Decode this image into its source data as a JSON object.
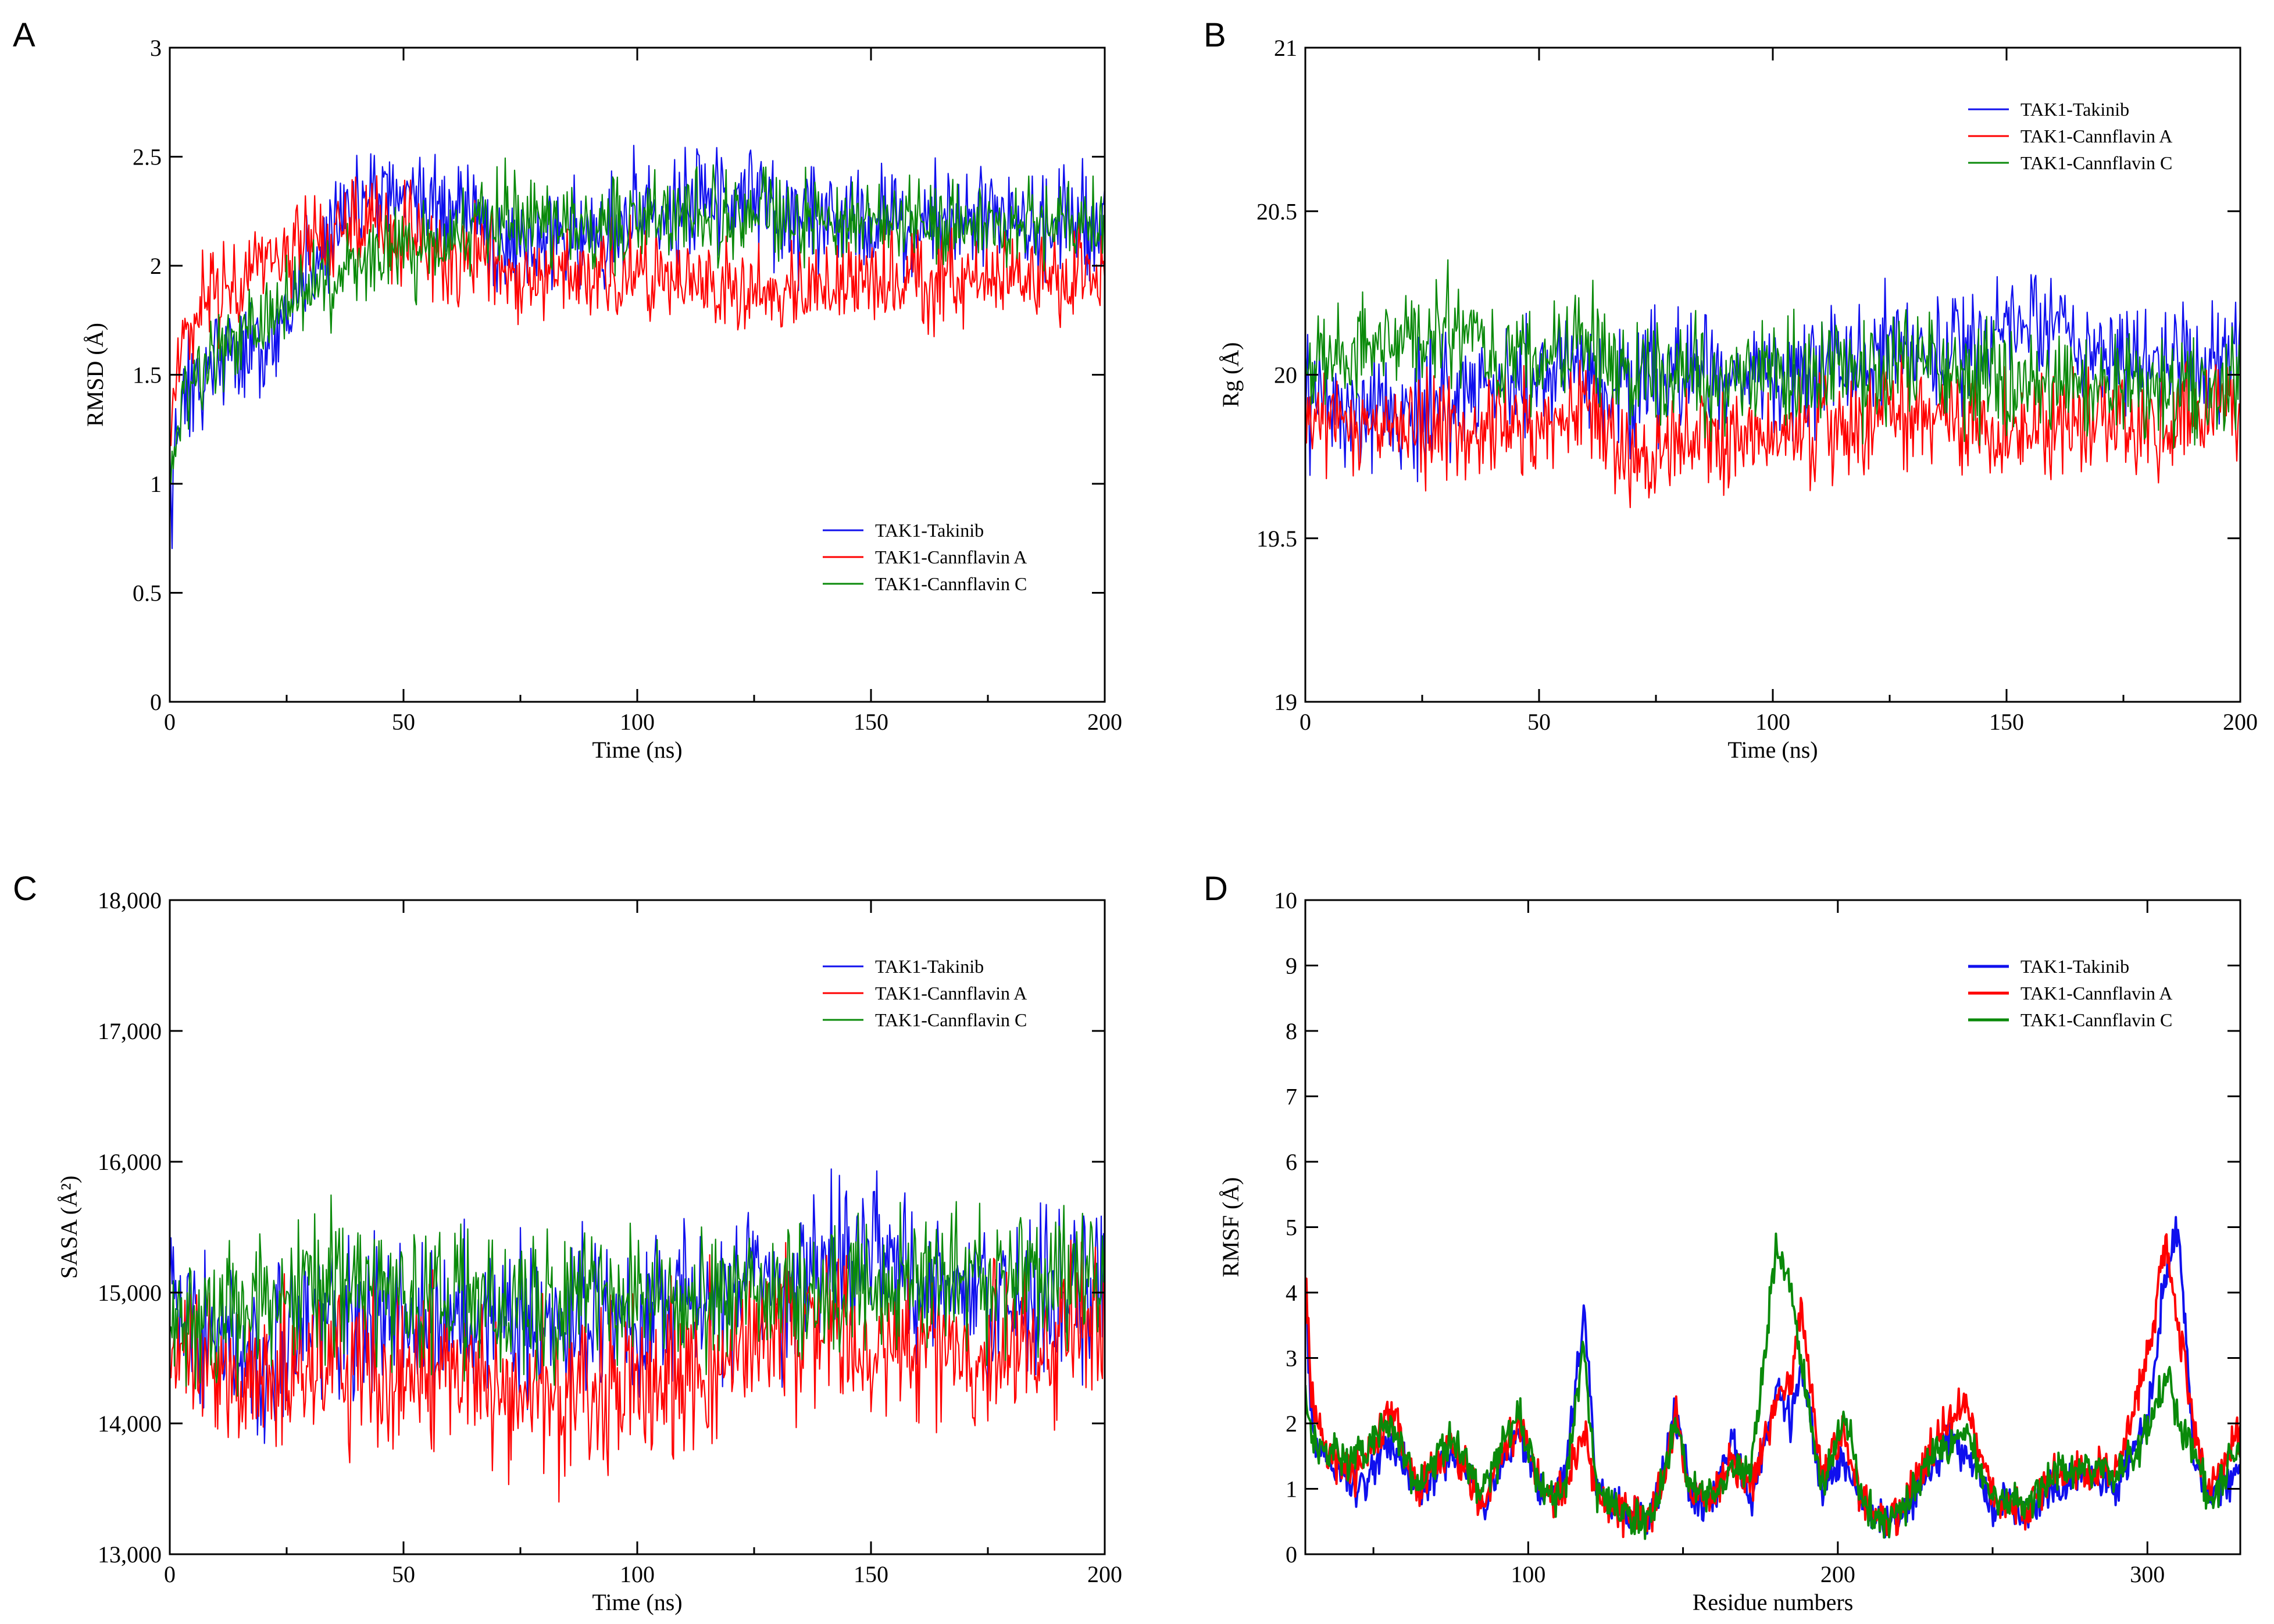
{
  "colors": {
    "takinib": "#1010ee",
    "cannflavin_a": "#ff0000",
    "cannflavin_c": "#0a8a0a"
  },
  "chart_data": [
    {
      "panel": "A",
      "type": "line",
      "title": "",
      "xlabel": "Time (ns)",
      "ylabel": "RMSD (Å)",
      "xlim": [
        0,
        200
      ],
      "ylim": [
        0,
        3
      ],
      "xticks": [
        0,
        50,
        100,
        150,
        200
      ],
      "xtick_labels": [
        "0",
        "50",
        "100",
        "150",
        "200"
      ],
      "yticks": [
        0,
        0.5,
        1,
        1.5,
        2,
        2.5,
        3
      ],
      "ytick_labels": [
        "0",
        "0.5",
        "1",
        "1.5",
        "2",
        "2.5",
        "3"
      ],
      "legend_position": "bottom-right",
      "series": [
        {
          "name": "TAK1-Takinib",
          "x": [
            0,
            2,
            10,
            20,
            30,
            40,
            50,
            60,
            70,
            80,
            100,
            120,
            140,
            160,
            180,
            200
          ],
          "values": [
            0.9,
            1.3,
            1.6,
            1.6,
            2.0,
            2.3,
            2.35,
            2.3,
            2.1,
            2.1,
            2.2,
            2.3,
            2.2,
            2.2,
            2.2,
            2.2
          ],
          "noise": 0.12
        },
        {
          "name": "TAK1-Cannflavin A",
          "x": [
            0,
            2,
            10,
            20,
            30,
            40,
            50,
            60,
            70,
            80,
            100,
            120,
            140,
            160,
            180,
            200
          ],
          "values": [
            1.2,
            1.6,
            1.9,
            2.0,
            2.1,
            2.2,
            2.15,
            2.05,
            2.0,
            1.95,
            1.95,
            1.9,
            1.9,
            1.95,
            1.95,
            1.95
          ],
          "noise": 0.11
        },
        {
          "name": "TAK1-Cannflavin C",
          "x": [
            0,
            2,
            10,
            20,
            30,
            40,
            50,
            60,
            70,
            80,
            100,
            120,
            140,
            160,
            180,
            200
          ],
          "values": [
            1.0,
            1.3,
            1.6,
            1.8,
            1.9,
            2.0,
            2.05,
            2.1,
            2.25,
            2.2,
            2.2,
            2.25,
            2.2,
            2.2,
            2.2,
            2.2
          ],
          "noise": 0.1
        }
      ]
    },
    {
      "panel": "B",
      "type": "line",
      "title": "",
      "xlabel": "Time (ns)",
      "ylabel": "Rg (Å)",
      "xlim": [
        0,
        200
      ],
      "ylim": [
        19,
        21
      ],
      "xticks": [
        0,
        50,
        100,
        150,
        200
      ],
      "xtick_labels": [
        "0",
        "50",
        "100",
        "150",
        "200"
      ],
      "yticks": [
        19,
        19.5,
        20,
        20.5,
        21
      ],
      "ytick_labels": [
        "19",
        "19.5",
        "20",
        "20.5",
        "21"
      ],
      "legend_position": "top-right",
      "series": [
        {
          "name": "TAK1-Takinib",
          "x": [
            0,
            10,
            20,
            30,
            40,
            50,
            60,
            70,
            80,
            100,
            120,
            130,
            140,
            150,
            160,
            180,
            200
          ],
          "values": [
            19.95,
            19.85,
            19.85,
            19.95,
            19.95,
            20.0,
            20.0,
            19.95,
            20.0,
            20.0,
            20.05,
            20.1,
            20.05,
            20.15,
            20.1,
            20.05,
            20.05
          ],
          "noise": 0.09
        },
        {
          "name": "TAK1-Cannflavin A",
          "x": [
            0,
            10,
            20,
            30,
            40,
            50,
            60,
            70,
            80,
            100,
            120,
            130,
            140,
            150,
            160,
            180,
            200
          ],
          "values": [
            19.9,
            19.85,
            19.85,
            19.8,
            19.85,
            19.85,
            19.9,
            19.75,
            19.8,
            19.8,
            19.85,
            19.9,
            19.85,
            19.85,
            19.85,
            19.85,
            19.9
          ],
          "noise": 0.08
        },
        {
          "name": "TAK1-Cannflavin C",
          "x": [
            0,
            10,
            20,
            30,
            40,
            50,
            60,
            70,
            80,
            100,
            120,
            130,
            140,
            150,
            160,
            180,
            200
          ],
          "values": [
            20.05,
            20.05,
            20.1,
            20.15,
            20.05,
            20.05,
            20.1,
            20.0,
            20.0,
            20.0,
            20.0,
            20.05,
            20.0,
            20.0,
            20.0,
            19.95,
            19.95
          ],
          "noise": 0.08
        }
      ]
    },
    {
      "panel": "C",
      "type": "line",
      "title": "",
      "xlabel": "Time (ns)",
      "ylabel": "SASA (Å²)",
      "xlim": [
        0,
        200
      ],
      "ylim": [
        13000,
        18000
      ],
      "xticks": [
        0,
        50,
        100,
        150,
        200
      ],
      "xtick_labels": [
        "0",
        "50",
        "100",
        "150",
        "200"
      ],
      "yticks": [
        13000,
        14000,
        15000,
        16000,
        17000,
        18000
      ],
      "ytick_labels": [
        "13,000",
        "14,000",
        "15,000",
        "16,000",
        "17,000",
        "18,000"
      ],
      "legend_position": "top-right",
      "series": [
        {
          "name": "TAK1-Takinib",
          "x": [
            0,
            10,
            20,
            30,
            50,
            70,
            90,
            110,
            120,
            125,
            130,
            150,
            160,
            180,
            200
          ],
          "values": [
            14900,
            14600,
            14500,
            14700,
            14800,
            14800,
            14800,
            14900,
            15000,
            15300,
            15000,
            15400,
            15100,
            15000,
            15000
          ],
          "noise": 280
        },
        {
          "name": "TAK1-Cannflavin A",
          "x": [
            0,
            10,
            20,
            30,
            50,
            70,
            90,
            110,
            120,
            130,
            150,
            160,
            180,
            200
          ],
          "values": [
            14500,
            14300,
            14300,
            14400,
            14500,
            14200,
            14200,
            14300,
            14600,
            14700,
            14500,
            14500,
            14600,
            14800
          ],
          "noise": 300
        },
        {
          "name": "TAK1-Cannflavin C",
          "x": [
            0,
            10,
            20,
            30,
            50,
            70,
            90,
            110,
            120,
            130,
            150,
            160,
            180,
            200
          ],
          "values": [
            14800,
            14900,
            14900,
            15100,
            15000,
            14900,
            15000,
            15000,
            15000,
            15000,
            15000,
            15100,
            15100,
            15100
          ],
          "noise": 250
        }
      ]
    },
    {
      "panel": "D",
      "type": "line",
      "title": "",
      "xlabel": "Residue numbers",
      "ylabel": "RMSF (Å)",
      "xlim": [
        28,
        330
      ],
      "ylim": [
        0,
        10
      ],
      "xticks": [
        100,
        200,
        300
      ],
      "xtick_labels": [
        "100",
        "200",
        "300"
      ],
      "yticks": [
        0,
        1,
        2,
        3,
        4,
        5,
        6,
        7,
        8,
        9,
        10
      ],
      "ytick_labels": [
        "0",
        "1",
        "2",
        "3",
        "4",
        "5",
        "6",
        "7",
        "8",
        "9",
        "10"
      ],
      "legend_position": "top-right",
      "series": [
        {
          "name": "TAK1-Takinib",
          "x": [
            28,
            30,
            35,
            45,
            55,
            65,
            75,
            85,
            97,
            105,
            112,
            118,
            122,
            130,
            140,
            148,
            152,
            160,
            166,
            172,
            180,
            185,
            188,
            195,
            202,
            207,
            212,
            220,
            228,
            235,
            242,
            250,
            260,
            270,
            280,
            290,
            300,
            306,
            310,
            315,
            320,
            330
          ],
          "values": [
            4.0,
            2.0,
            1.4,
            1.0,
            1.8,
            0.9,
            1.6,
            0.8,
            1.9,
            0.8,
            1.2,
            3.8,
            1.0,
            0.6,
            0.6,
            2.2,
            0.9,
            0.8,
            1.8,
            0.7,
            2.6,
            2.0,
            3.0,
            1.0,
            1.4,
            0.8,
            0.5,
            0.5,
            1.2,
            1.8,
            1.5,
            0.8,
            0.6,
            1.0,
            1.2,
            1.0,
            2.0,
            4.3,
            5.0,
            1.5,
            0.8,
            1.3
          ],
          "noise": 0.15
        },
        {
          "name": "TAK1-Cannflavin A",
          "x": [
            28,
            30,
            35,
            45,
            55,
            65,
            75,
            85,
            97,
            105,
            112,
            118,
            122,
            130,
            140,
            148,
            152,
            160,
            166,
            172,
            180,
            185,
            188,
            195,
            202,
            207,
            212,
            220,
            228,
            235,
            242,
            250,
            260,
            270,
            280,
            290,
            300,
            306,
            310,
            315,
            320,
            330
          ],
          "values": [
            4.5,
            2.4,
            1.5,
            1.2,
            2.2,
            1.0,
            1.7,
            0.8,
            2.0,
            0.9,
            1.0,
            1.9,
            0.9,
            0.6,
            0.6,
            2.1,
            0.9,
            0.8,
            1.5,
            1.0,
            2.3,
            2.6,
            3.8,
            1.2,
            1.9,
            0.9,
            0.5,
            0.6,
            1.4,
            2.0,
            2.3,
            0.9,
            0.7,
            1.2,
            1.3,
            1.2,
            3.0,
            4.8,
            3.5,
            2.0,
            0.9,
            2.0
          ],
          "noise": 0.15
        },
        {
          "name": "TAK1-Cannflavin C",
          "x": [
            28,
            30,
            35,
            45,
            55,
            65,
            75,
            85,
            97,
            105,
            112,
            118,
            122,
            130,
            140,
            148,
            152,
            160,
            166,
            172,
            180,
            185,
            188,
            195,
            202,
            207,
            212,
            220,
            228,
            235,
            242,
            250,
            260,
            270,
            280,
            290,
            300,
            306,
            310,
            315,
            320,
            330
          ],
          "values": [
            2.5,
            1.7,
            1.5,
            1.5,
            2.0,
            1.0,
            1.8,
            1.0,
            2.1,
            0.9,
            1.0,
            3.2,
            1.0,
            0.6,
            0.6,
            2.0,
            1.0,
            0.9,
            1.4,
            1.2,
            4.7,
            4.1,
            3.0,
            1.0,
            2.2,
            1.0,
            0.5,
            0.6,
            1.3,
            1.7,
            1.8,
            0.9,
            0.7,
            1.3,
            1.3,
            1.2,
            1.9,
            2.8,
            2.0,
            1.6,
            0.8,
            1.6
          ],
          "noise": 0.15
        }
      ]
    }
  ]
}
